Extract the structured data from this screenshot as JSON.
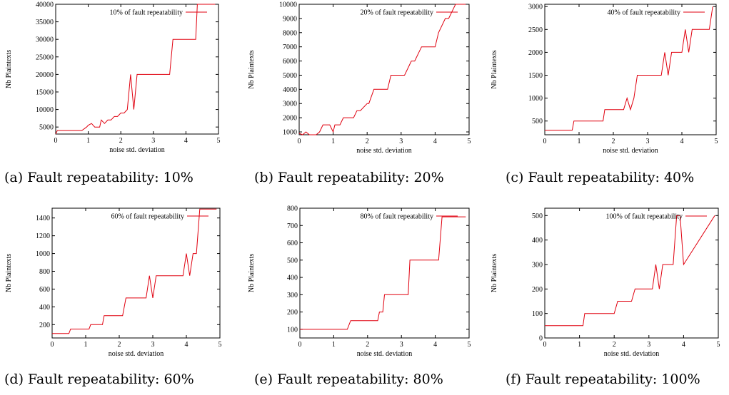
{
  "chart_data": [
    {
      "type": "line",
      "caption": "(a) Fault repeatability: 10%",
      "xlabel": "noise std. deviation",
      "ylabel": "Nb Plaintexts",
      "legend_position": "top-right",
      "series": [
        {
          "name": "10% of fault repeatability",
          "color": "#e0000f",
          "x": [
            0,
            0.05,
            0.2,
            0.5,
            0.8,
            0.95,
            1.0,
            1.1,
            1.2,
            1.35,
            1.4,
            1.5,
            1.6,
            1.7,
            1.8,
            1.9,
            2.0,
            2.1,
            2.2,
            2.3,
            2.4,
            2.5,
            2.6,
            3.5,
            3.6,
            4.3,
            4.35,
            4.9
          ],
          "y": [
            3000,
            4000,
            4000,
            4000,
            4000,
            5000,
            5500,
            6000,
            5000,
            5000,
            7000,
            6000,
            7000,
            7000,
            8000,
            8000,
            9000,
            9000,
            10000,
            20000,
            10000,
            20000,
            20000,
            20000,
            30000,
            30000,
            40000,
            40000
          ]
        }
      ],
      "xlim": [
        0,
        5
      ],
      "ylim": [
        3000,
        40000
      ],
      "xticks": [
        0,
        1,
        2,
        3,
        4,
        5
      ],
      "yticks": [
        5000,
        10000,
        15000,
        20000,
        25000,
        30000,
        35000,
        40000
      ]
    },
    {
      "type": "line",
      "caption": "(b) Fault repeatability: 20%",
      "xlabel": "noise std. deviation",
      "ylabel": "Nb Plaintexts",
      "legend_position": "top-right",
      "series": [
        {
          "name": "20% of fault repeatability",
          "color": "#e0000f",
          "x": [
            0,
            0.1,
            0.2,
            0.3,
            0.5,
            0.6,
            0.7,
            0.8,
            0.9,
            1.0,
            1.05,
            1.2,
            1.3,
            1.4,
            1.6,
            1.7,
            1.8,
            2.0,
            2.05,
            2.2,
            2.3,
            2.6,
            2.7,
            3.0,
            3.1,
            3.3,
            3.4,
            3.6,
            3.7,
            4.0,
            4.1,
            4.3,
            4.4,
            4.6,
            4.7,
            4.9
          ],
          "y": [
            900,
            800,
            1000,
            800,
            800,
            1000,
            1500,
            1500,
            1500,
            1000,
            1500,
            1500,
            2000,
            2000,
            2000,
            2500,
            2500,
            3000,
            3000,
            4000,
            4000,
            4000,
            5000,
            5000,
            5000,
            6000,
            6000,
            7000,
            7000,
            7000,
            8000,
            9000,
            9000,
            10000,
            10000,
            10000
          ]
        }
      ],
      "xlim": [
        0,
        5
      ],
      "ylim": [
        800,
        10000
      ],
      "xticks": [
        0,
        1,
        2,
        3,
        4,
        5
      ],
      "yticks": [
        1000,
        2000,
        3000,
        4000,
        5000,
        6000,
        7000,
        8000,
        9000,
        10000
      ]
    },
    {
      "type": "line",
      "caption": "(c) Fault repeatability: 40%",
      "xlabel": "noise std. deviation",
      "ylabel": "Nb Plaintexts",
      "legend_position": "top-right",
      "series": [
        {
          "name": "40% of fault repeatability",
          "color": "#e0000f",
          "x": [
            0,
            0.8,
            0.85,
            1.7,
            1.75,
            2.3,
            2.4,
            2.5,
            2.6,
            2.7,
            3.4,
            3.5,
            3.6,
            3.7,
            4.0,
            4.1,
            4.2,
            4.3,
            4.8,
            4.9
          ],
          "y": [
            300,
            300,
            500,
            500,
            750,
            750,
            1000,
            750,
            1000,
            1500,
            1500,
            2000,
            1500,
            2000,
            2000,
            2500,
            2000,
            2500,
            2500,
            3000
          ]
        }
      ],
      "xlim": [
        0,
        5
      ],
      "ylim": [
        200,
        3050
      ],
      "xticks": [
        0,
        1,
        2,
        3,
        4,
        5
      ],
      "yticks": [
        500,
        1000,
        1500,
        2000,
        2500,
        3000
      ]
    },
    {
      "type": "line",
      "caption": "(d) Fault repeatability: 60%",
      "xlabel": "noise std. deviation",
      "ylabel": "Nb Plaintexts",
      "legend_position": "top-right",
      "series": [
        {
          "name": "60% of fault repeatability",
          "color": "#e0000f",
          "x": [
            0,
            0.5,
            0.55,
            1.1,
            1.15,
            1.5,
            1.55,
            2.1,
            2.2,
            2.8,
            2.9,
            3.0,
            3.1,
            3.9,
            4.0,
            4.1,
            4.2,
            4.3,
            4.4,
            4.9
          ],
          "y": [
            100,
            100,
            150,
            150,
            200,
            200,
            300,
            300,
            500,
            500,
            750,
            500,
            750,
            750,
            1000,
            750,
            1000,
            1000,
            1500,
            1500
          ]
        }
      ],
      "xlim": [
        0,
        5
      ],
      "ylim": [
        50,
        1510
      ],
      "xticks": [
        0,
        1,
        2,
        3,
        4,
        5
      ],
      "yticks": [
        200,
        400,
        600,
        800,
        1000,
        1200,
        1400
      ]
    },
    {
      "type": "line",
      "caption": "(e) Fault repeatability: 80%",
      "xlabel": "noise std. deviation",
      "ylabel": "Nb Plaintexts",
      "legend_position": "top-right",
      "series": [
        {
          "name": "80% of fault repeatability",
          "color": "#e0000f",
          "x": [
            0,
            1.4,
            1.5,
            2.3,
            2.35,
            2.45,
            2.5,
            3.2,
            3.25,
            4.1,
            4.2,
            4.9
          ],
          "y": [
            100,
            100,
            150,
            150,
            200,
            200,
            300,
            300,
            500,
            500,
            750,
            750
          ]
        }
      ],
      "xlim": [
        0,
        5
      ],
      "ylim": [
        50,
        800
      ],
      "xticks": [
        0,
        1,
        2,
        3,
        4,
        5
      ],
      "yticks": [
        100,
        200,
        300,
        400,
        500,
        600,
        700,
        800
      ]
    },
    {
      "type": "line",
      "caption": "(f) Fault repeatability: 100%",
      "xlabel": "noise std. deviation",
      "ylabel": "Nb Plaintexts",
      "legend_position": "top-right",
      "series": [
        {
          "name": "100% of fault repeatability",
          "color": "#e0000f",
          "x": [
            0,
            1.1,
            1.15,
            2.0,
            2.1,
            2.5,
            2.6,
            3.1,
            3.2,
            3.3,
            3.4,
            3.7,
            3.8,
            3.9,
            4.0,
            4.9
          ],
          "y": [
            50,
            50,
            100,
            100,
            150,
            150,
            200,
            200,
            300,
            200,
            300,
            300,
            500,
            500,
            300,
            500
          ]
        }
      ],
      "xlim": [
        0,
        5
      ],
      "ylim": [
        0,
        530
      ],
      "xticks": [
        0,
        1,
        2,
        3,
        4,
        5
      ],
      "yticks": [
        0,
        100,
        200,
        300,
        400,
        500
      ]
    }
  ]
}
